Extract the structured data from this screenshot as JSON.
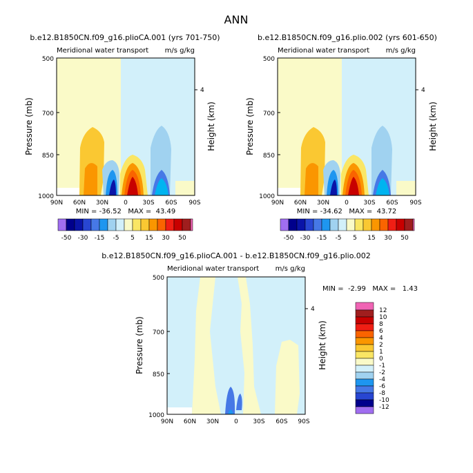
{
  "page_title": "ANN",
  "colors": {
    "lavender": "#a06ef0",
    "navy1": "#00008c",
    "navy2": "#0a14a8",
    "blue1": "#2846d2",
    "blue2": "#4678e6",
    "blue3": "#1e96f0",
    "cyan1": "#00b4f0",
    "lightblue2": "#a0d2f0",
    "lightblue1": "#d2f0fa",
    "lightyellow": "#fafac8",
    "yellow1": "#fae664",
    "gold": "#fac832",
    "orange1": "#fa9600",
    "orange2": "#fa6400",
    "red1": "#f01e14",
    "red2": "#c80000",
    "darkred": "#a01e1e",
    "pink": "#f064b4"
  },
  "top_colorbar_labels": [
    "-50",
    "-30",
    "-15",
    "-5",
    "5",
    "15",
    "30",
    "50"
  ],
  "diff_colorbar_labels": [
    "12",
    "10",
    "8",
    "6",
    "4",
    "2",
    "1",
    "0",
    "-1",
    "-2",
    "-4",
    "-6",
    "-8",
    "-10",
    "-12"
  ],
  "chart_data": [
    {
      "type": "heatmap",
      "title": "b.e12.B1850CN.f09_g16.plioCA.001 (yrs 701-750)",
      "subtitle_left": "Meridional water transport",
      "subtitle_right": "m/s g/kg",
      "ylabel": "Pressure (mb)",
      "ylabel_right": "Height (km)",
      "x_ticks": [
        "90N",
        "60N",
        "30N",
        "0",
        "30S",
        "60S",
        "90S"
      ],
      "y_ticks": [
        "500",
        "700",
        "850",
        "1000"
      ],
      "right_ticks": [
        "4"
      ],
      "stats": "MIN = -36.52   MAX =  43.49",
      "min": -36.52,
      "max": 43.49,
      "levels": [
        -50,
        -40,
        -30,
        -20,
        -15,
        -10,
        -5,
        -2,
        2,
        5,
        10,
        15,
        20,
        30,
        40,
        50
      ]
    },
    {
      "type": "heatmap",
      "title": "b.e12.B1850CN.f09_g16.plio.002 (yrs 601-650)",
      "subtitle_left": "Meridional water transport",
      "subtitle_right": "m/s g/kg",
      "ylabel": "Pressure (mb)",
      "ylabel_right": "Height (km)",
      "x_ticks": [
        "90N",
        "60N",
        "30N",
        "0",
        "30S",
        "60S",
        "90S"
      ],
      "y_ticks": [
        "500",
        "700",
        "850",
        "1000"
      ],
      "right_ticks": [
        "4"
      ],
      "stats": "MIN = -34.62   MAX =  43.72",
      "min": -34.62,
      "max": 43.72,
      "levels": [
        -50,
        -40,
        -30,
        -20,
        -15,
        -10,
        -5,
        -2,
        2,
        5,
        10,
        15,
        20,
        30,
        40,
        50
      ]
    },
    {
      "type": "heatmap",
      "title": "b.e12.B1850CN.f09_g16.plioCA.001 - b.e12.B1850CN.f09_g16.plio.002",
      "subtitle_left": "Meridional water transport",
      "subtitle_right": "m/s g/kg",
      "ylabel": "Pressure (mb)",
      "ylabel_right": "Height (km)",
      "x_ticks": [
        "90N",
        "60N",
        "30N",
        "0",
        "30S",
        "60S",
        "90S"
      ],
      "y_ticks": [
        "500",
        "700",
        "850",
        "1000"
      ],
      "right_ticks": [
        "4"
      ],
      "stats": "MIN =  -2.99   MAX =   1.43",
      "min": -2.99,
      "max": 1.43,
      "levels": [
        -12,
        -10,
        -8,
        -6,
        -4,
        -2,
        -1,
        0,
        1,
        2,
        4,
        6,
        8,
        10,
        12
      ]
    }
  ]
}
